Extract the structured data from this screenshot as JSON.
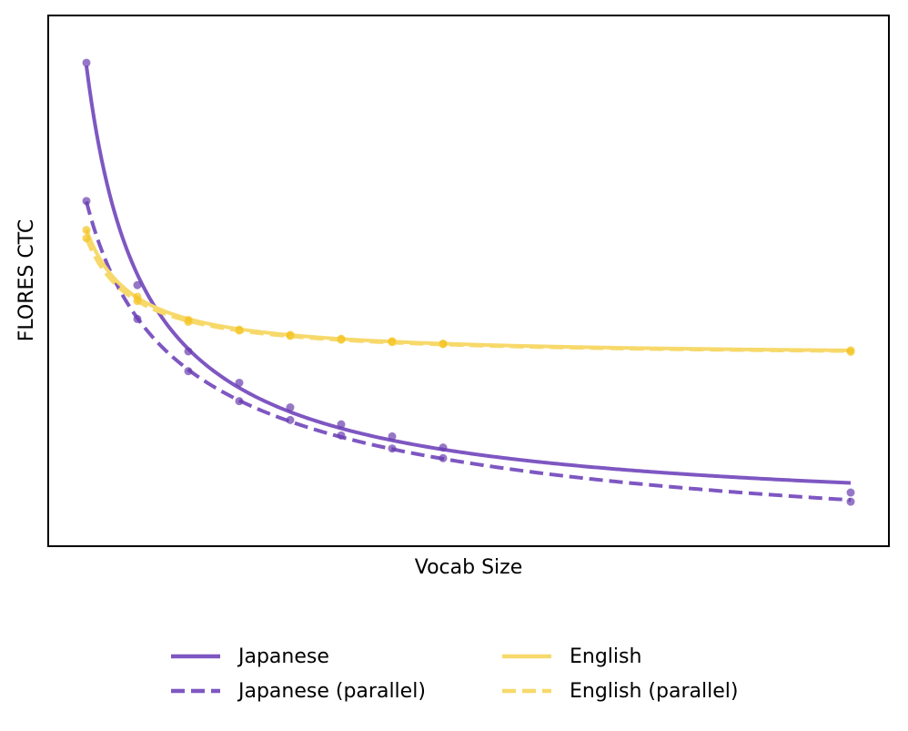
{
  "chart_data": {
    "type": "line",
    "title": "",
    "xlabel": "Vocab Size",
    "ylabel": "FLORES CTC",
    "xticks_shown": false,
    "yticks_shown": false,
    "grid": false,
    "legend_position": "bottom-center",
    "x": [
      1,
      2,
      3,
      4,
      5,
      6,
      7,
      8,
      16
    ],
    "series": [
      {
        "name": "Japanese",
        "color": "#7e57c2",
        "linestyle": "solid",
        "marker_color": "#6a3daf",
        "values": [
          0.953,
          0.493,
          0.356,
          0.291,
          0.24,
          0.205,
          0.18,
          0.157,
          0.064
        ]
      },
      {
        "name": "Japanese (parallel)",
        "color": "#7e57c2",
        "linestyle": "dashed",
        "marker_color": "#6a3daf",
        "values": [
          0.667,
          0.423,
          0.315,
          0.253,
          0.214,
          0.182,
          0.155,
          0.135,
          0.045
        ]
      },
      {
        "name": "English",
        "color": "#f7d96b",
        "linestyle": "solid",
        "marker_color": "#f3c31f",
        "values": [
          0.607,
          0.469,
          0.421,
          0.401,
          0.39,
          0.382,
          0.377,
          0.372,
          0.358
        ]
      },
      {
        "name": "English (parallel)",
        "color": "#f7d96b",
        "linestyle": "dashed",
        "marker_color": "#f3c31f",
        "values": [
          0.59,
          0.46,
          0.417,
          0.399,
          0.388,
          0.38,
          0.375,
          0.371,
          0.355
        ]
      }
    ],
    "ylim": [
      0,
      1
    ],
    "xlim": [
      0.25,
      16.75
    ]
  },
  "legend": {
    "items": [
      {
        "label": "Japanese",
        "color": "#7e57c2",
        "dashed": false
      },
      {
        "label": "English",
        "color": "#f7d96b",
        "dashed": false
      },
      {
        "label": "Japanese (parallel)",
        "color": "#7e57c2",
        "dashed": true
      },
      {
        "label": "English (parallel)",
        "color": "#f7d96b",
        "dashed": true
      }
    ]
  }
}
